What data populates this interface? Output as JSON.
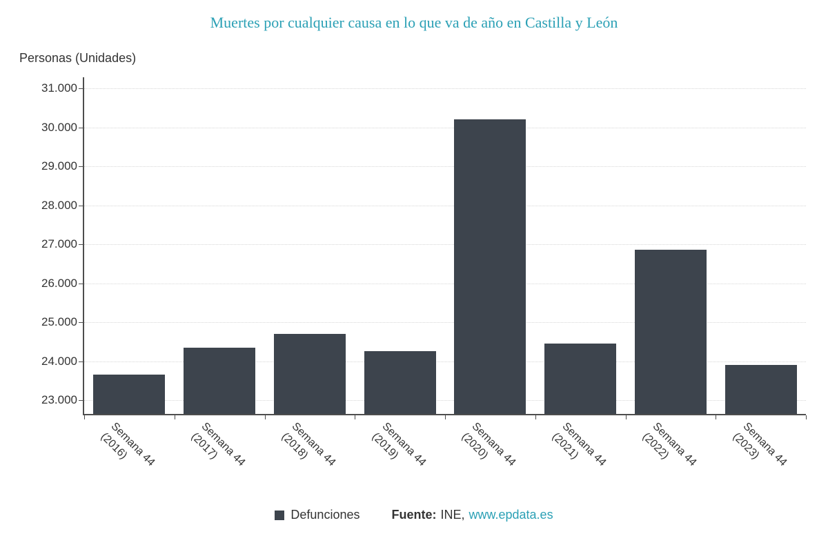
{
  "chart_data": {
    "type": "bar",
    "title": "Muertes por cualquier causa en lo que va de año en Castilla y León",
    "ylabel": "Personas (Unidades)",
    "xlabel": "",
    "categories": [
      "Semana 44 (2016)",
      "Semana 44 (2017)",
      "Semana 44 (2018)",
      "Semana 44 (2019)",
      "Semana 44 (2020)",
      "Semana 44 (2021)",
      "Semana 44 (2022)",
      "Semana 44 (2023)"
    ],
    "values": [
      23650,
      24350,
      24700,
      24250,
      30200,
      24450,
      26850,
      23900
    ],
    "legend": [
      "Defunciones"
    ],
    "legend_position": "bottom",
    "yticks": [
      {
        "value": 23000,
        "label": "23.000"
      },
      {
        "value": 24000,
        "label": "24.000"
      },
      {
        "value": 25000,
        "label": "25.000"
      },
      {
        "value": 26000,
        "label": "26.000"
      },
      {
        "value": 27000,
        "label": "27.000"
      },
      {
        "value": 28000,
        "label": "28.000"
      },
      {
        "value": 29000,
        "label": "29.000"
      },
      {
        "value": 30000,
        "label": "30.000"
      },
      {
        "value": 31000,
        "label": "31.000"
      }
    ],
    "ylim": [
      22650,
      31000
    ],
    "grid": "horizontal-dotted"
  },
  "source": {
    "prefix": "Fuente:",
    "publisher": "INE,",
    "link": "www.epdata.es"
  },
  "colors": {
    "bar": "#3d444d",
    "title": "#2ba0b5",
    "link": "#2ba0b5",
    "axis": "#4d4d4d",
    "grid": "#d6d6d6",
    "text": "#333333"
  }
}
